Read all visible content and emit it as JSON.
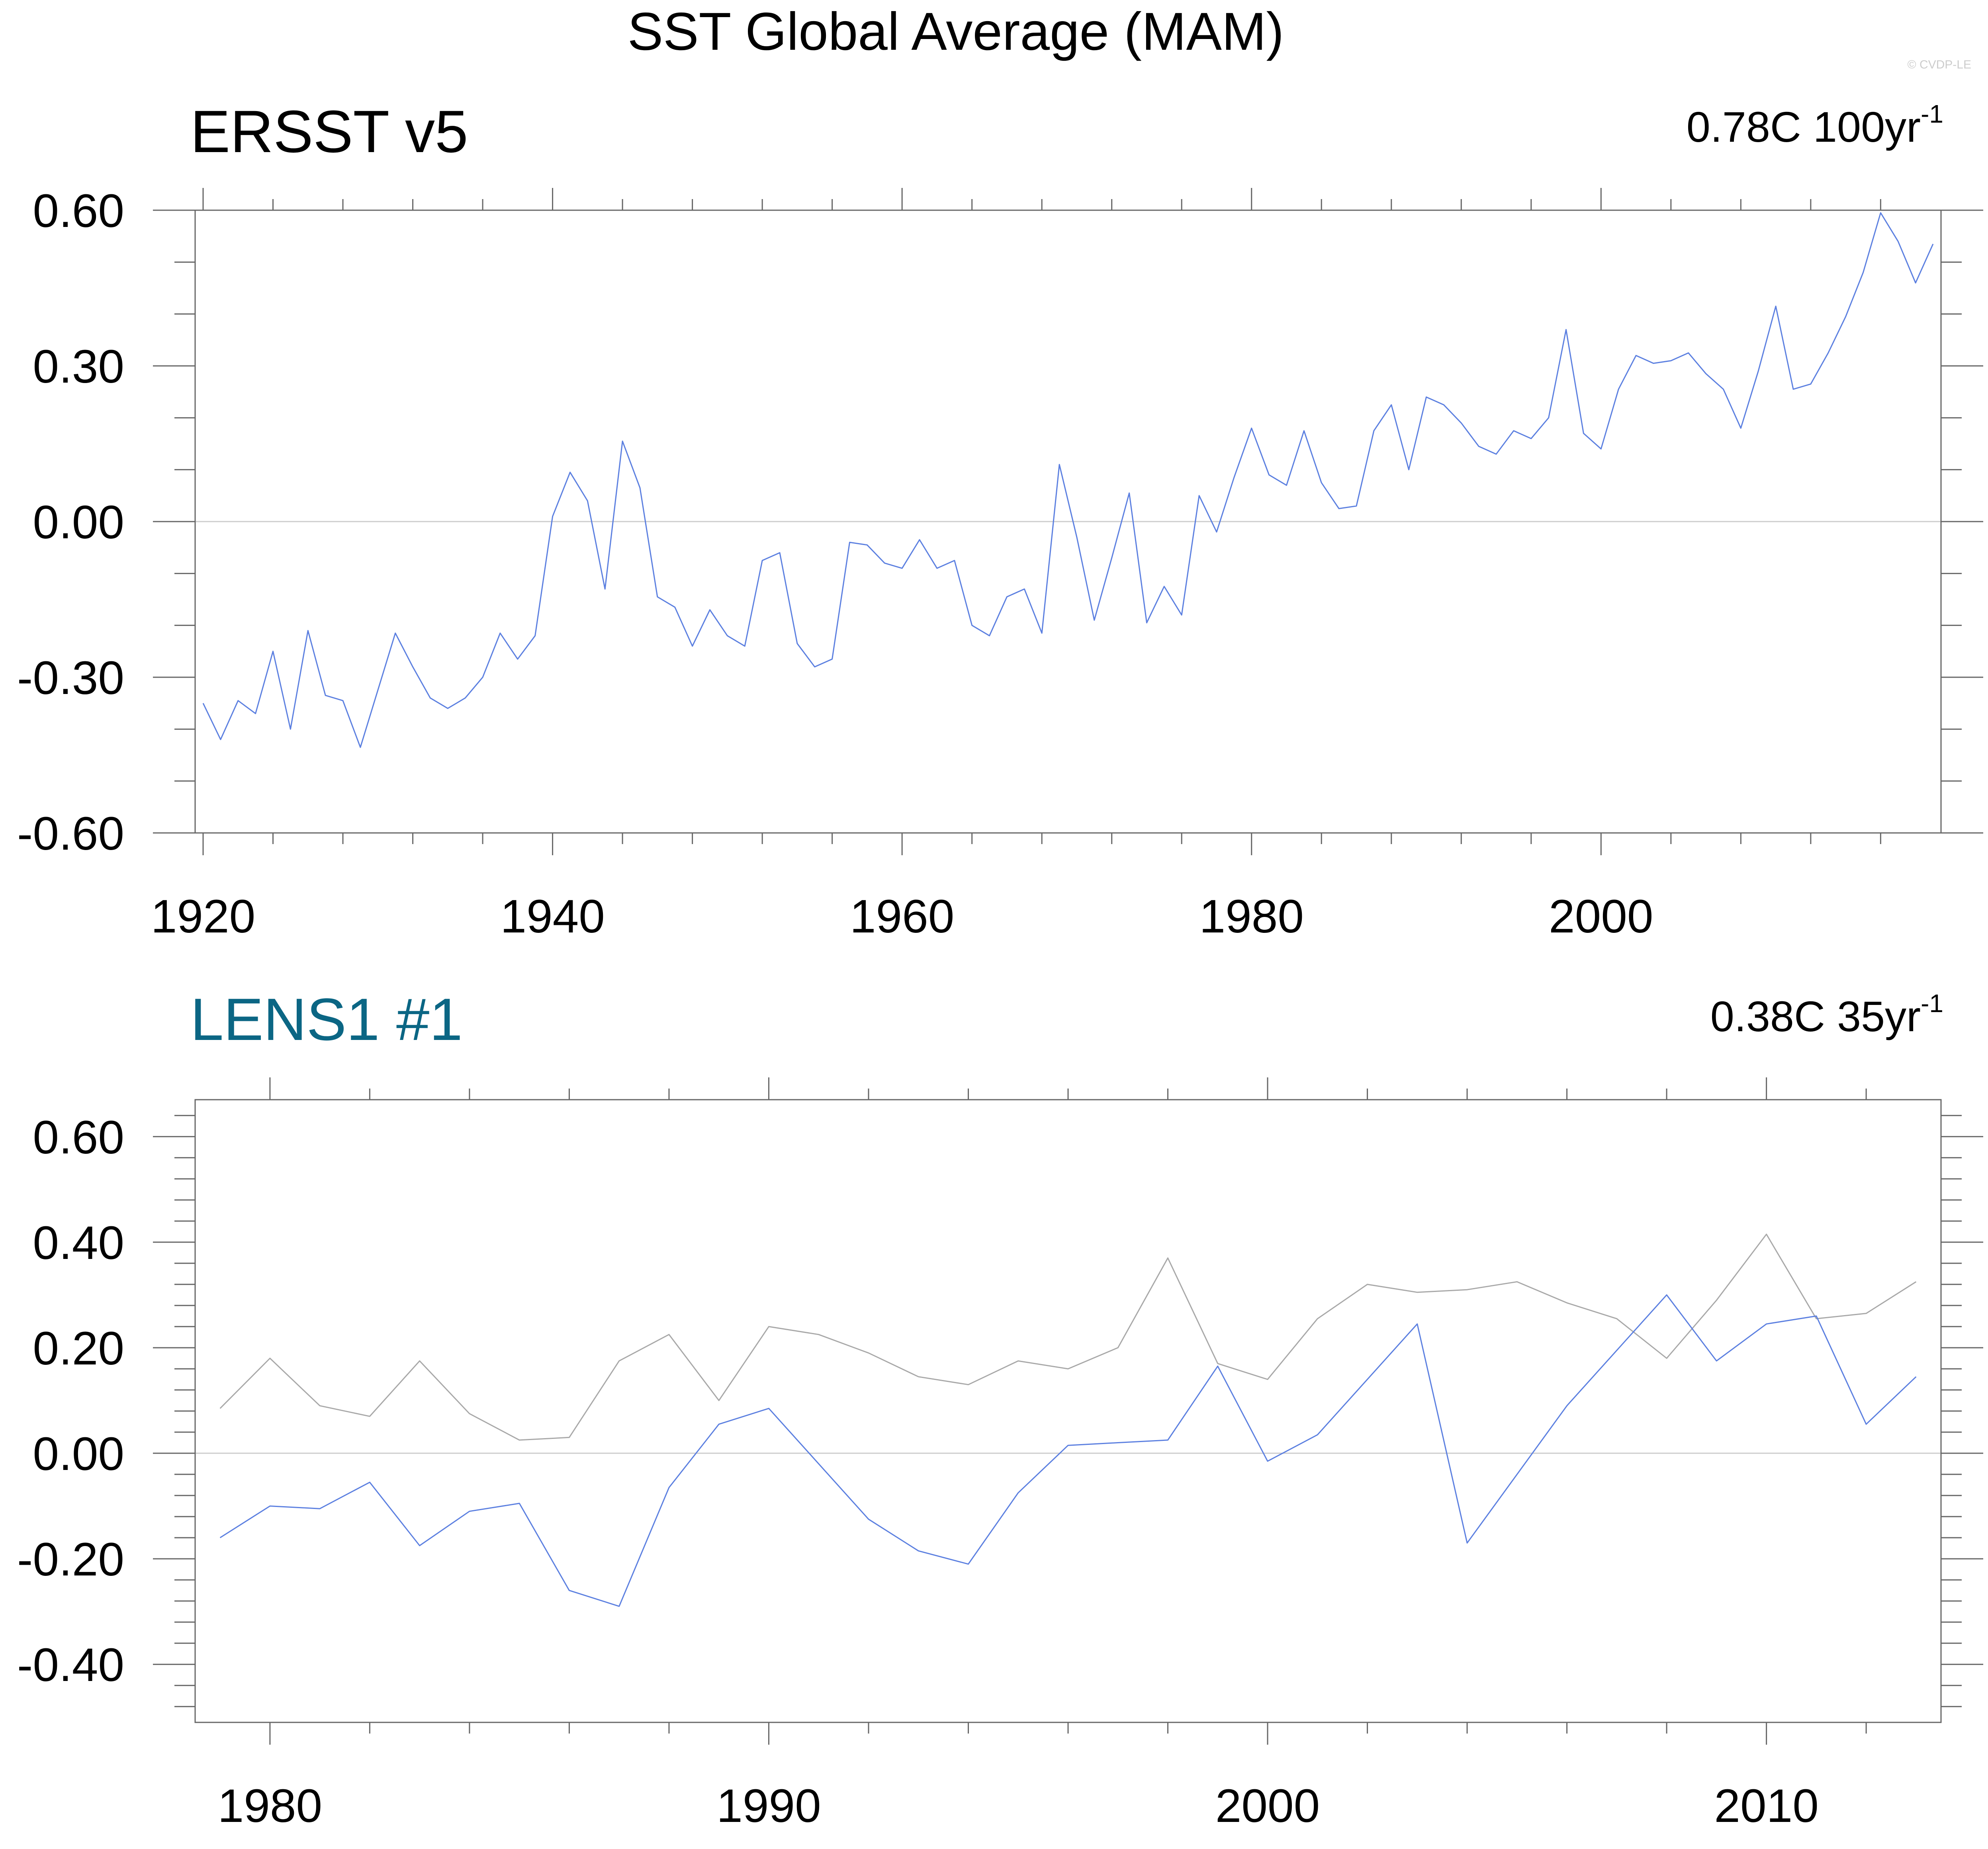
{
  "main_title": "SST Global Average (MAM)",
  "watermark": "© CVDP-LE",
  "colors": {
    "obs_line": "#5b7fe0",
    "model_line": "#5b7fe0",
    "obs_ref_line": "#a8a8a8",
    "lens_title": "#0b6684"
  },
  "chart_data": [
    {
      "type": "line",
      "title": "ERSST v5",
      "trend_value": "0.78C 100yr",
      "trend_exp": "-1",
      "xlim": [
        1920,
        2019
      ],
      "ylim": [
        -0.6,
        0.6
      ],
      "x_ticks": [
        1920,
        1940,
        1960,
        1980,
        2000
      ],
      "y_ticks": [
        "-0.60",
        "-0.30",
        "0.00",
        "0.30",
        "0.60"
      ],
      "grid": false,
      "x": [
        1920,
        1921,
        1922,
        1923,
        1924,
        1925,
        1926,
        1927,
        1928,
        1929,
        1930,
        1931,
        1932,
        1933,
        1934,
        1935,
        1936,
        1937,
        1938,
        1939,
        1940,
        1941,
        1942,
        1943,
        1944,
        1945,
        1946,
        1947,
        1948,
        1949,
        1950,
        1951,
        1952,
        1953,
        1954,
        1955,
        1956,
        1957,
        1958,
        1959,
        1960,
        1961,
        1962,
        1963,
        1964,
        1965,
        1966,
        1967,
        1968,
        1969,
        1970,
        1971,
        1972,
        1973,
        1974,
        1975,
        1976,
        1977,
        1978,
        1979,
        1980,
        1981,
        1982,
        1983,
        1984,
        1985,
        1986,
        1987,
        1988,
        1989,
        1990,
        1991,
        1992,
        1993,
        1994,
        1995,
        1996,
        1997,
        1998,
        1999,
        2000,
        2001,
        2002,
        2003,
        2004,
        2005,
        2006,
        2007,
        2008,
        2009,
        2010,
        2011,
        2012,
        2013,
        2014,
        2015,
        2016,
        2017,
        2018,
        2019
      ],
      "series": [
        {
          "values": [
            -0.35,
            -0.42,
            -0.345,
            -0.37,
            -0.25,
            -0.4,
            -0.21,
            -0.335,
            -0.345,
            -0.435,
            -0.325,
            -0.215,
            -0.28,
            -0.34,
            -0.36,
            -0.34,
            -0.3,
            -0.215,
            -0.265,
            -0.22,
            0.01,
            0.095,
            0.04,
            -0.13,
            0.155,
            0.065,
            -0.145,
            -0.165,
            -0.24,
            -0.17,
            -0.22,
            -0.24,
            -0.075,
            -0.06,
            -0.235,
            -0.28,
            -0.265,
            -0.04,
            -0.045,
            -0.08,
            -0.09,
            -0.035,
            -0.09,
            -0.075,
            -0.2,
            -0.22,
            -0.145,
            -0.13,
            -0.215,
            0.11,
            -0.03,
            -0.19,
            -0.07,
            0.055,
            -0.195,
            -0.125,
            -0.18,
            0.05,
            -0.02,
            0.085,
            0.18,
            0.09,
            0.07,
            0.175,
            0.075,
            0.025,
            0.03,
            0.175,
            0.225,
            0.1,
            0.24,
            0.225,
            0.19,
            0.145,
            0.13,
            0.175,
            0.16,
            0.2,
            0.37,
            0.17,
            0.14,
            0.255,
            0.32,
            0.305,
            0.31,
            0.325,
            0.285,
            0.255,
            0.18,
            0.29,
            0.415,
            0.255,
            0.265,
            0.325,
            0.395,
            0.48,
            0.595,
            0.54,
            0.46,
            0.535
          ]
        }
      ]
    },
    {
      "type": "line",
      "title": "LENS1 #1",
      "trend_value": "0.38C 35yr",
      "trend_exp": "-1",
      "xlim": [
        1978.5,
        2013.5
      ],
      "ylim": [
        -0.51,
        0.67
      ],
      "x_ticks": [
        1980,
        1990,
        2000,
        2010
      ],
      "y_ticks": [
        "-0.40",
        "-0.20",
        "0.00",
        "0.20",
        "0.40",
        "0.60"
      ],
      "grid": false,
      "x": [
        1979,
        1980,
        1981,
        1982,
        1983,
        1984,
        1985,
        1986,
        1987,
        1988,
        1989,
        1990,
        1991,
        1992,
        1993,
        1994,
        1995,
        1996,
        1997,
        1998,
        1999,
        2000,
        2001,
        2002,
        2003,
        2004,
        2005,
        2006,
        2007,
        2008,
        2009,
        2010,
        2011,
        2012,
        2013
      ],
      "series": [
        {
          "color_key": "model_line",
          "values": [
            -0.16,
            -0.1,
            -0.105,
            -0.055,
            -0.175,
            -0.11,
            -0.095,
            -0.26,
            -0.29,
            -0.065,
            0.055,
            0.085,
            -0.02,
            -0.125,
            -0.185,
            -0.21,
            -0.075,
            0.015,
            0.02,
            0.025,
            0.165,
            -0.015,
            0.035,
            0.14,
            0.245,
            -0.17,
            -0.04,
            0.09,
            0.195,
            0.3,
            0.175,
            0.245,
            0.26,
            0.055,
            0.145
          ]
        },
        {
          "color_key": "obs_ref_line",
          "values": [
            0.085,
            0.18,
            0.09,
            0.07,
            0.175,
            0.075,
            0.025,
            0.03,
            0.175,
            0.225,
            0.1,
            0.24,
            0.225,
            0.19,
            0.145,
            0.13,
            0.175,
            0.16,
            0.2,
            0.37,
            0.17,
            0.14,
            0.255,
            0.32,
            0.305,
            0.31,
            0.325,
            0.285,
            0.255,
            0.18,
            0.29,
            0.415,
            0.255,
            0.265,
            0.325
          ]
        }
      ]
    }
  ]
}
